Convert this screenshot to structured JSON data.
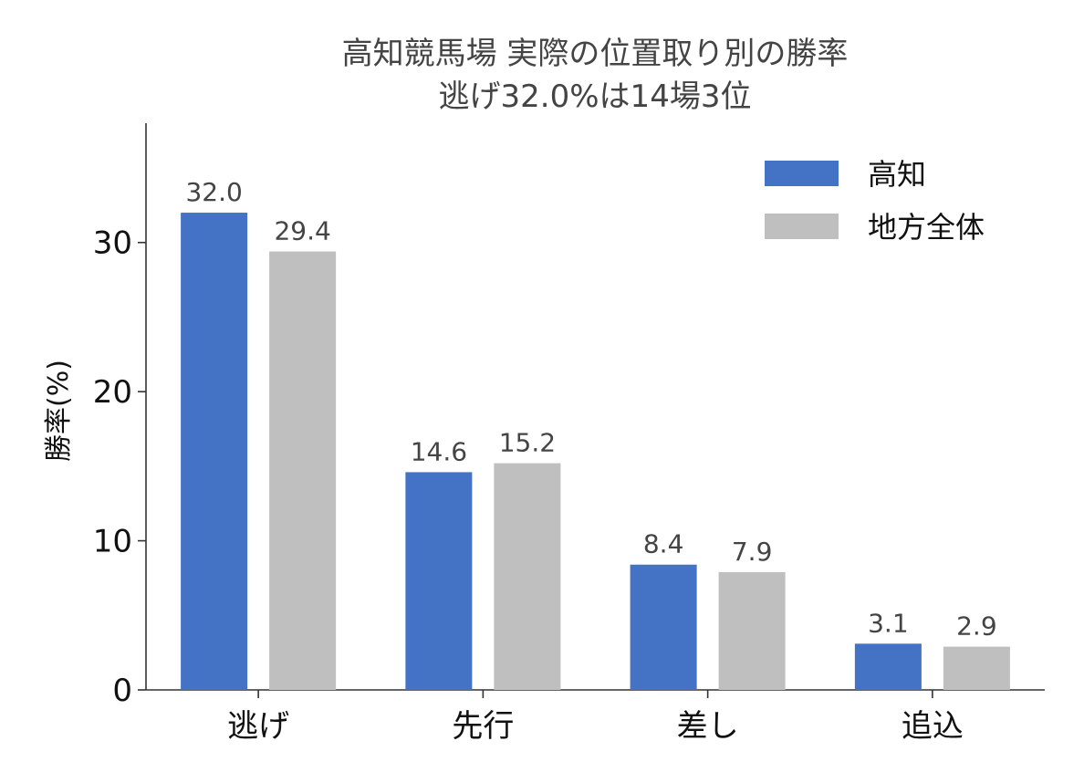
{
  "chart_data": {
    "type": "bar",
    "title": "高知競馬場 実際の位置取り別の勝率",
    "subtitle": "逃げ32.0%は14場3位",
    "xlabel": "",
    "ylabel": "勝率(%)",
    "ylim": [
      0,
      38
    ],
    "yticks": [
      0,
      10,
      20,
      30
    ],
    "categories": [
      "逃げ",
      "先行",
      "差し",
      "追込"
    ],
    "series": [
      {
        "name": "高知",
        "color": "#4472c4",
        "values": [
          32.0,
          14.6,
          8.4,
          3.1
        ],
        "labels": [
          "32.0",
          "14.6",
          "8.4",
          "3.1"
        ]
      },
      {
        "name": "地方全体",
        "color": "#bfbfbf",
        "values": [
          29.4,
          15.2,
          7.9,
          2.9
        ],
        "labels": [
          "29.4",
          "15.2",
          "7.9",
          "2.9"
        ]
      }
    ],
    "legend": "top-right",
    "grid": false
  }
}
